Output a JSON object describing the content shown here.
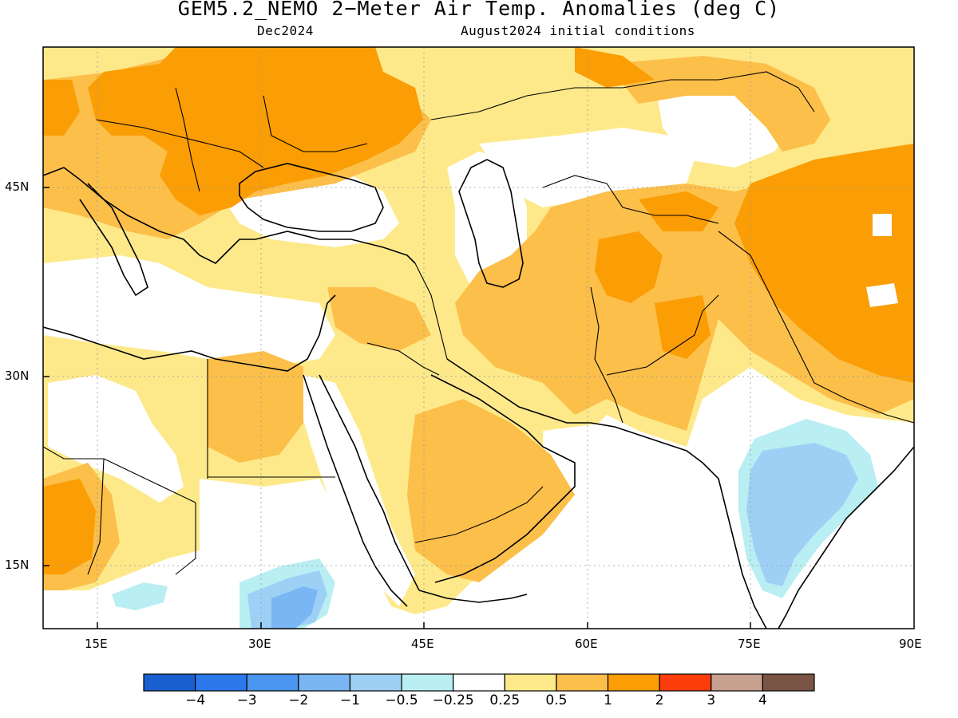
{
  "header": {
    "title": "GEM5.2_NEMO 2−Meter Air Temp. Anomalies (deg C)",
    "valid_month": "Dec2024",
    "init": "August2024 initial conditions"
  },
  "axes": {
    "lon_ticks": [
      "15E",
      "30E",
      "45E",
      "60E",
      "75E",
      "90E"
    ],
    "lat_ticks": [
      "45N",
      "30N",
      "15N"
    ],
    "lon_range": [
      10,
      90
    ],
    "lat_range": [
      10,
      56
    ]
  },
  "colorbar": {
    "labels": [
      "−4",
      "−3",
      "−2",
      "−1",
      "−0.5",
      "−0.25",
      "0.25",
      "0.5",
      "1",
      "2",
      "3",
      "4"
    ],
    "colors": [
      "#1a5fd0",
      "#2a78ea",
      "#4a95ef",
      "#79b6f3",
      "#9ed0f6",
      "#b9eef3",
      "#ffffff",
      "#fde98a",
      "#fbbf4a",
      "#fb9d05",
      "#fc3d0b",
      "#c8a08f",
      "#7a5444"
    ]
  },
  "colors": {
    "light_yellow": "#fde98a",
    "light_orange": "#fbbf4a",
    "orange": "#fb9d05",
    "light_blue": "#9ed0f6",
    "pale_cyan": "#b9eef3",
    "blue": "#79b6f3",
    "mid_blue": "#4a95ef",
    "coast": "#000000"
  }
}
